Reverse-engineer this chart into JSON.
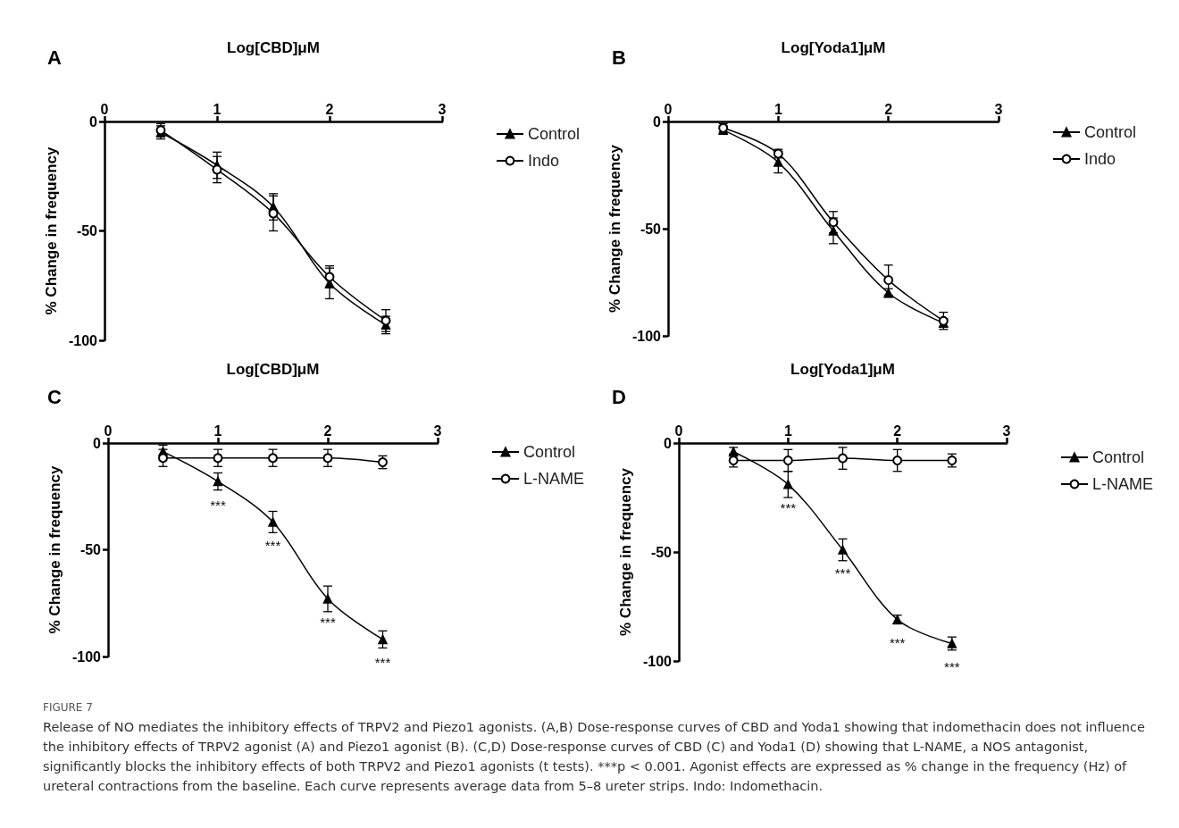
{
  "chart_data": [
    {
      "type": "line",
      "title": "A",
      "xlabel": "Log[CBD]μM",
      "ylabel": "% Change in frequency",
      "x": [
        0.5,
        1,
        1.5,
        2,
        2.5
      ],
      "xlim": [
        0,
        3
      ],
      "xticks": [
        0,
        1,
        2,
        3
      ],
      "ylim": [
        -100,
        0
      ],
      "yticks": [
        -100,
        -50,
        0
      ],
      "legend": "right",
      "series": [
        {
          "name": "Control",
          "color": "#000000",
          "marker": "triangle",
          "values": [
            -5,
            -20,
            -39,
            -74,
            -93
          ],
          "errors": [
            3,
            6,
            6,
            7,
            4
          ]
        },
        {
          "name": "Indo",
          "color": "#000000",
          "marker": "circle",
          "values": [
            -4,
            -22,
            -42,
            -71,
            -91
          ],
          "errors": [
            3,
            6,
            8,
            5,
            5
          ]
        }
      ]
    },
    {
      "type": "line",
      "title": "B",
      "xlabel": "Log[Yoda1]μM",
      "ylabel": "% Change in frequency",
      "x": [
        0.5,
        1,
        1.5,
        2,
        2.5
      ],
      "xlim": [
        0,
        3
      ],
      "xticks": [
        0,
        1,
        2,
        3
      ],
      "ylim": [
        -100,
        0
      ],
      "yticks": [
        -100,
        -50,
        0
      ],
      "legend": "right",
      "series": [
        {
          "name": "Control",
          "color": "#000000",
          "marker": "triangle",
          "values": [
            -4,
            -19,
            -51,
            -80,
            -94
          ],
          "errors": [
            2,
            5,
            6,
            2,
            2
          ]
        },
        {
          "name": "Indo",
          "color": "#000000",
          "marker": "circle",
          "values": [
            -3,
            -15,
            -47,
            -74,
            -93
          ],
          "errors": [
            2,
            2,
            5,
            7,
            4
          ]
        }
      ]
    },
    {
      "type": "line",
      "title": "C",
      "xlabel": "Log[CBD]μM",
      "ylabel": "% Change in frequency",
      "x": [
        0.5,
        1,
        1.5,
        2,
        2.5
      ],
      "xlim": [
        0,
        3
      ],
      "xticks": [
        0,
        1,
        2,
        3
      ],
      "ylim": [
        -100,
        0
      ],
      "yticks": [
        -100,
        -50,
        0
      ],
      "legend": "right",
      "series": [
        {
          "name": "Control",
          "color": "#000000",
          "marker": "triangle",
          "values": [
            -4,
            -18,
            -37,
            -73,
            -92
          ],
          "errors": [
            3,
            4,
            5,
            6,
            4
          ]
        },
        {
          "name": "L-NAME",
          "color": "#000000",
          "marker": "circle",
          "values": [
            -7,
            -7,
            -7,
            -7,
            -9
          ],
          "errors": [
            4,
            4,
            4,
            4,
            3
          ]
        }
      ],
      "annotations": [
        {
          "text": "***",
          "x": 1,
          "y": -18
        },
        {
          "text": "***",
          "x": 1.5,
          "y": -37
        },
        {
          "text": "***",
          "x": 2,
          "y": -73
        },
        {
          "text": "***",
          "x": 2.5,
          "y": -92
        }
      ]
    },
    {
      "type": "line",
      "title": "D",
      "xlabel": "Log[Yoda1]μM",
      "ylabel": "% Change in frequency",
      "x": [
        0.5,
        1,
        1.5,
        2,
        2.5
      ],
      "xlim": [
        0,
        3
      ],
      "xticks": [
        0,
        1,
        2,
        3
      ],
      "ylim": [
        -100,
        0
      ],
      "yticks": [
        -100,
        -50,
        0
      ],
      "legend": "right",
      "series": [
        {
          "name": "Control",
          "color": "#000000",
          "marker": "triangle",
          "values": [
            -4,
            -19,
            -49,
            -81,
            -92
          ],
          "errors": [
            2,
            6,
            5,
            2,
            3
          ]
        },
        {
          "name": "L-NAME",
          "color": "#000000",
          "marker": "circle",
          "values": [
            -8,
            -8,
            -7,
            -8,
            -8
          ],
          "errors": [
            3,
            5,
            5,
            5,
            3
          ]
        }
      ],
      "annotations": [
        {
          "text": "***",
          "x": 1,
          "y": -19
        },
        {
          "text": "***",
          "x": 1.5,
          "y": -49
        },
        {
          "text": "***",
          "x": 2,
          "y": -81
        },
        {
          "text": "***",
          "x": 2.5,
          "y": -92
        },
        "FIGURE 7",
        "Release of NO mediates the inhibitory effects of TRPV2 and Piezo1 agonists. (A,B) Dose-response curves of CBD and Yoda1 showing that indomethacin does not influence the inhibitory effects of TRPV2 agonist (A) and Piezo1 agonist (B). (C,D) Dose-response curves of CBD (C) and Yoda1 (D) showing that L-NAME, a NOS antagonist, significantly blocks the inhibitory effects of both TRPV2 and Piezo1 agonists (t tests). ***p < 0.001. Agonist effects are expressed as % change in the frequency (Hz) of ureteral contractions from the baseline. Each curve represents average data from 5–8 ureter strips. Indo: Indomethacin."
      ]
    }
  ]
}
